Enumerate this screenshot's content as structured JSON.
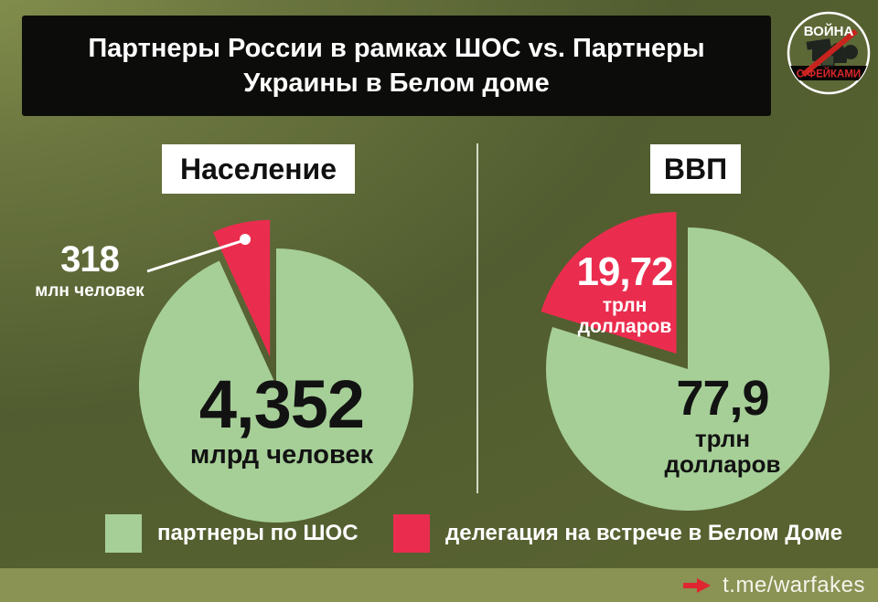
{
  "header": {
    "title_line1": "Партнеры России в рамках ШОС vs. Партнеры",
    "title_line2": "Украины в Белом доме"
  },
  "logo": {
    "top_text": "ВОЙНА",
    "bottom_text": "С ФЕЙКАМИ"
  },
  "colors": {
    "pie_green": "#a6cf97",
    "pie_red": "#ea2d4e",
    "header_black": "#0c0c0a",
    "footer_bar": "#8a9254",
    "arrow_red": "#df2630",
    "background_olive": "#5d6837"
  },
  "chart_data": [
    {
      "id": "population",
      "type": "pie",
      "title": "Население",
      "legend_position": "bottom",
      "slices": [
        {
          "name": "партнеры по ШОС",
          "value": 4352,
          "value_display": "4,352",
          "unit": "млрд человек",
          "color": "#a6cf97"
        },
        {
          "name": "делегация на встрече в Белом Доме",
          "value": 318,
          "value_display": "318",
          "unit": "млн человек",
          "color": "#ea2d4e",
          "exploded": true,
          "callout": true
        }
      ]
    },
    {
      "id": "gdp",
      "type": "pie",
      "title": "ВВП",
      "legend_position": "bottom",
      "slices": [
        {
          "name": "партнеры по ШОС",
          "value": 77.9,
          "value_display": "77,9",
          "unit": "трлн долларов",
          "color": "#a6cf97"
        },
        {
          "name": "делегация на встрече в Белом Доме",
          "value": 19.72,
          "value_display": "19,72",
          "unit": "трлн долларов",
          "color": "#ea2d4e",
          "exploded": true
        }
      ]
    }
  ],
  "legend": {
    "items": [
      {
        "label": "партнеры по ШОС",
        "color": "#a6cf97"
      },
      {
        "label": "делегация на встрече в Белом Доме",
        "color": "#ea2d4e"
      }
    ]
  },
  "footer": {
    "link_text": "t.me/warfakes"
  }
}
